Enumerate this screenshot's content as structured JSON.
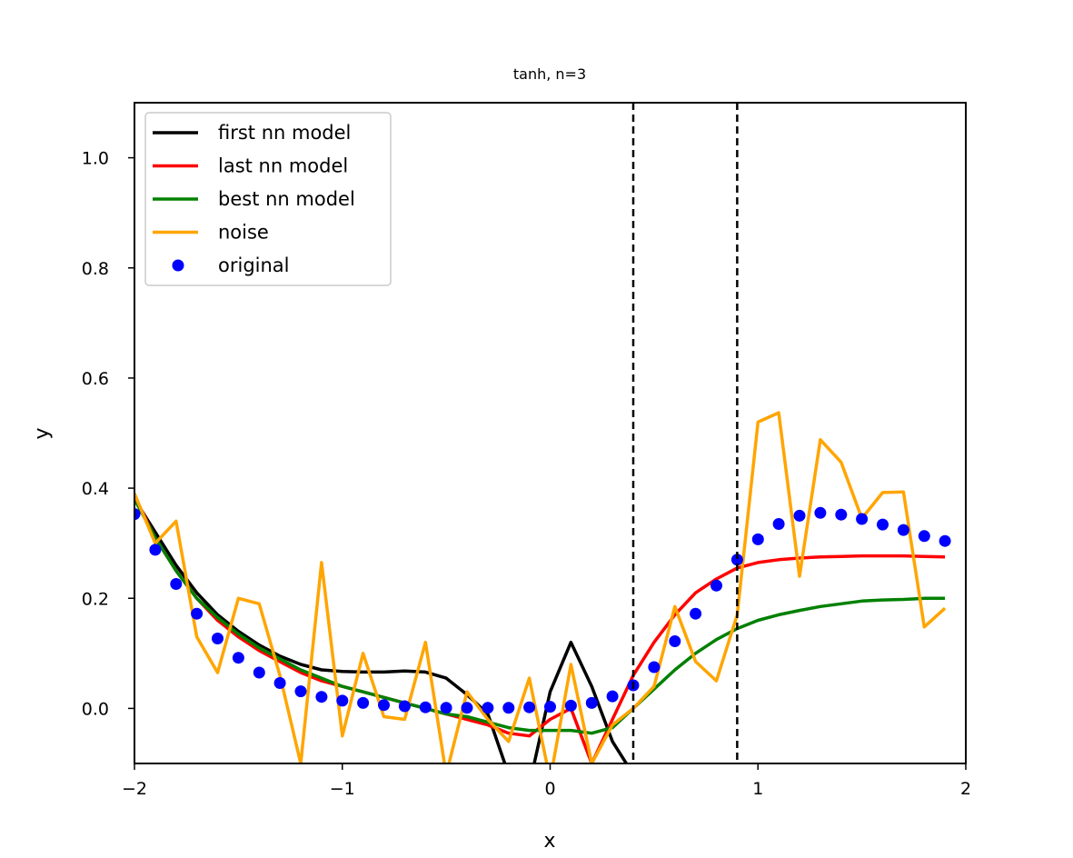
{
  "chart_data": {
    "type": "line",
    "title": "tanh, n=3",
    "xlabel": "x",
    "ylabel": "y",
    "xlim": [
      -2,
      2
    ],
    "ylim": [
      -0.1,
      1.1
    ],
    "xticks": [
      -2,
      -1,
      0,
      1,
      2
    ],
    "xtick_labels": [
      "−2",
      "−1",
      "0",
      "1",
      "2"
    ],
    "yticks": [
      0.0,
      0.2,
      0.4,
      0.6,
      0.8,
      1.0
    ],
    "ytick_labels": [
      "0.0",
      "0.2",
      "0.4",
      "0.6",
      "0.8",
      "1.0"
    ],
    "grid": false,
    "legend_position": "upper-left",
    "vlines": [
      0.4,
      0.9
    ],
    "x": [
      -2.0,
      -1.9,
      -1.8,
      -1.7,
      -1.6,
      -1.5,
      -1.4,
      -1.3,
      -1.2,
      -1.1,
      -1.0,
      -0.9,
      -0.8,
      -0.7,
      -0.6,
      -0.5,
      -0.4,
      -0.3,
      -0.2,
      -0.1,
      0.0,
      0.1,
      0.2,
      0.3,
      0.4,
      0.5,
      0.6,
      0.7,
      0.8,
      0.9,
      1.0,
      1.1,
      1.2,
      1.3,
      1.4,
      1.5,
      1.6,
      1.7,
      1.8,
      1.9
    ],
    "series": [
      {
        "name": "first nn model",
        "style": "line",
        "color": "#000000",
        "values": [
          0.38,
          0.32,
          0.26,
          0.21,
          0.17,
          0.14,
          0.115,
          0.095,
          0.08,
          0.07,
          0.067,
          0.066,
          0.066,
          0.068,
          0.066,
          0.055,
          0.025,
          -0.01,
          -0.12,
          -0.14,
          0.03,
          0.12,
          0.04,
          -0.06,
          -0.12,
          -0.12,
          -0.12,
          -0.12,
          -0.12,
          -0.12,
          -0.12,
          -0.12,
          -0.12,
          -0.12,
          -0.12,
          -0.12,
          -0.12,
          -0.12,
          -0.12,
          -0.12
        ]
      },
      {
        "name": "last nn model",
        "style": "line",
        "color": "#ff0000",
        "values": [
          0.385,
          0.31,
          0.25,
          0.2,
          0.16,
          0.13,
          0.105,
          0.085,
          0.065,
          0.05,
          0.04,
          0.03,
          0.02,
          0.01,
          0.0,
          -0.01,
          -0.02,
          -0.03,
          -0.045,
          -0.05,
          -0.02,
          0.0,
          -0.1,
          -0.02,
          0.06,
          0.12,
          0.17,
          0.21,
          0.235,
          0.255,
          0.265,
          0.27,
          0.273,
          0.275,
          0.276,
          0.277,
          0.277,
          0.277,
          0.276,
          0.275
        ]
      },
      {
        "name": "best nn model",
        "style": "line",
        "color": "#008000",
        "values": [
          0.38,
          0.31,
          0.25,
          0.2,
          0.165,
          0.135,
          0.11,
          0.09,
          0.07,
          0.055,
          0.04,
          0.03,
          0.02,
          0.01,
          0.0,
          -0.01,
          -0.015,
          -0.025,
          -0.035,
          -0.04,
          -0.04,
          -0.04,
          -0.045,
          -0.035,
          0.0,
          0.035,
          0.07,
          0.1,
          0.125,
          0.145,
          0.16,
          0.17,
          0.178,
          0.185,
          0.19,
          0.195,
          0.197,
          0.198,
          0.2,
          0.2
        ]
      },
      {
        "name": "noise",
        "style": "line",
        "color": "#ffa500",
        "values": [
          0.39,
          0.3,
          0.34,
          0.13,
          0.065,
          0.2,
          0.19,
          0.06,
          -0.1,
          0.265,
          -0.05,
          0.1,
          -0.015,
          -0.02,
          0.12,
          -0.12,
          0.03,
          -0.02,
          -0.06,
          0.055,
          -0.13,
          0.08,
          -0.1,
          -0.03,
          0.0,
          0.04,
          0.185,
          0.085,
          0.05,
          0.17,
          0.52,
          0.537,
          0.24,
          0.488,
          0.447,
          0.345,
          0.392,
          0.393,
          0.148,
          0.182
        ]
      },
      {
        "name": "original",
        "style": "dots",
        "color": "#0000ff",
        "values": [
          0.353,
          0.288,
          0.226,
          0.172,
          0.127,
          0.092,
          0.065,
          0.046,
          0.031,
          0.021,
          0.014,
          0.01,
          0.006,
          0.004,
          0.002,
          0.001,
          0.001,
          0.001,
          0.001,
          0.002,
          0.003,
          0.005,
          0.01,
          0.022,
          0.042,
          0.075,
          0.122,
          0.172,
          0.223,
          0.27,
          0.307,
          0.335,
          0.35,
          0.355,
          0.352,
          0.344,
          0.334,
          0.324,
          0.313,
          0.304
        ]
      }
    ]
  }
}
